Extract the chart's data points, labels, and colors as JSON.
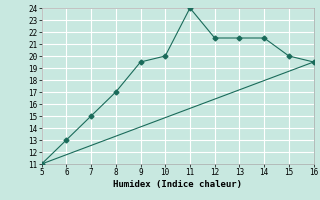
{
  "xlabel": "Humidex (Indice chaleur)",
  "ylabel": "",
  "bg_color": "#c8e8e0",
  "grid_color": "#ffffff",
  "line_color": "#1a6b5a",
  "xlim": [
    5,
    16
  ],
  "ylim": [
    11,
    24
  ],
  "xticks": [
    5,
    6,
    7,
    8,
    9,
    10,
    11,
    12,
    13,
    14,
    15,
    16
  ],
  "yticks": [
    11,
    12,
    13,
    14,
    15,
    16,
    17,
    18,
    19,
    20,
    21,
    22,
    23,
    24
  ],
  "line1_x": [
    5,
    6,
    7,
    8,
    9,
    10,
    11,
    12,
    13,
    14,
    15,
    16
  ],
  "line1_y": [
    11,
    13,
    15,
    17,
    19.5,
    20,
    24,
    21.5,
    21.5,
    21.5,
    20,
    19.5
  ],
  "line2_x": [
    5,
    16
  ],
  "line2_y": [
    11,
    19.5
  ]
}
